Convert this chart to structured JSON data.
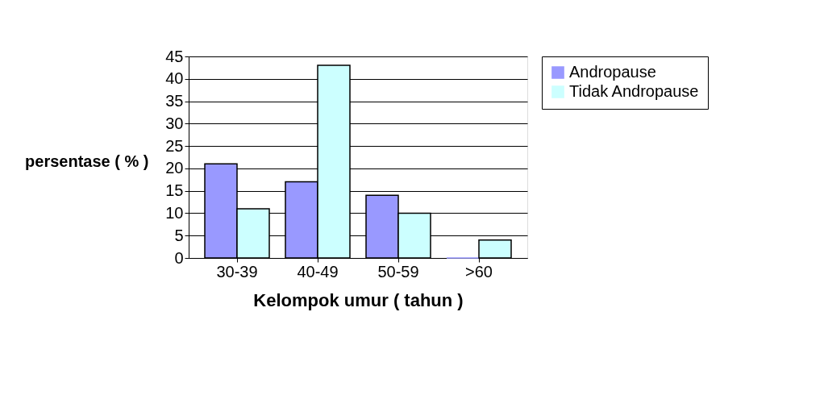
{
  "chart_data": {
    "type": "bar",
    "xlabel": "Kelompok umur ( tahun )",
    "ylabel": "persentase ( % )",
    "categories": [
      "30-39",
      "40-49",
      "50-59",
      ">60"
    ],
    "series": [
      {
        "name": "Andropause",
        "color": "#9999ff",
        "values": [
          21,
          17,
          14,
          0
        ]
      },
      {
        "name": "Tidak Andropause",
        "color": "#ccffff",
        "values": [
          11,
          43,
          10,
          4
        ]
      }
    ],
    "ylim": [
      0,
      45
    ],
    "yticks": [
      0,
      5,
      10,
      15,
      20,
      25,
      30,
      35,
      40,
      45
    ],
    "grid": "y",
    "legend": "right"
  }
}
